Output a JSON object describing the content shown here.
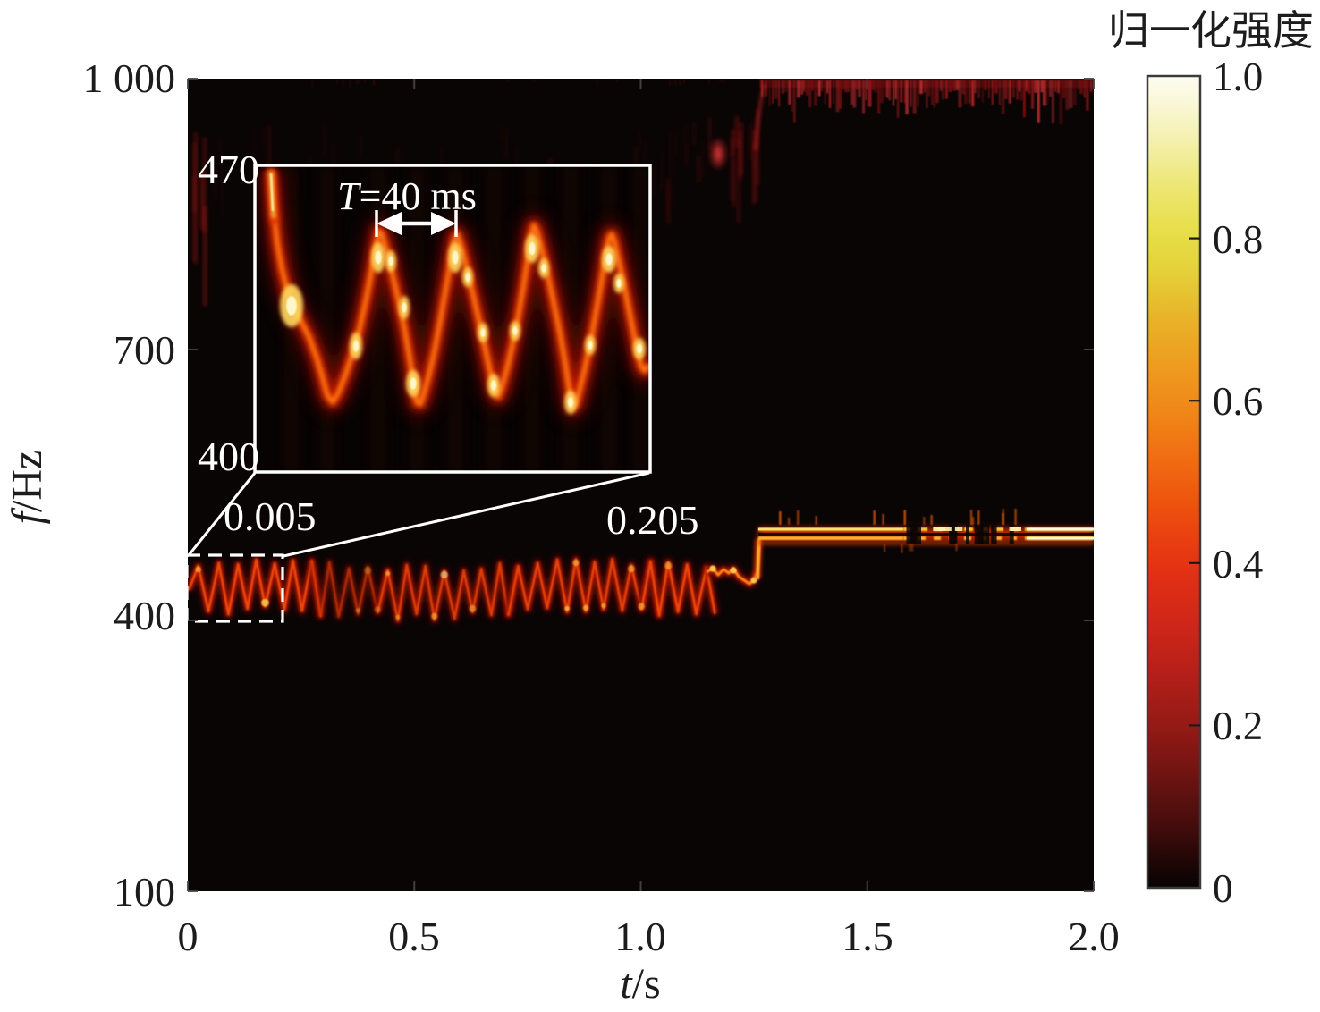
{
  "figure": {
    "colorbar_title": "归一化强度"
  },
  "axes": {
    "x_label_var": "t",
    "x_label_rest": "/s",
    "y_label_var": "f",
    "y_label_rest": "/Hz",
    "x_ticks": [
      {
        "label": "0",
        "value": 0
      },
      {
        "label": "0.5",
        "value": 0.5
      },
      {
        "label": "1.0",
        "value": 1.0
      },
      {
        "label": "1.5",
        "value": 1.5
      },
      {
        "label": "2.0",
        "value": 2.0
      }
    ],
    "y_ticks": [
      {
        "label": "100",
        "value": 100
      },
      {
        "label": "400",
        "value": 400
      },
      {
        "label": "700",
        "value": 700
      },
      {
        "label": "1 000",
        "value": 1000
      }
    ]
  },
  "colorbar": {
    "title": "归一化强度",
    "ticks": [
      {
        "label": "0",
        "value": 0
      },
      {
        "label": "0.2",
        "value": 0.2
      },
      {
        "label": "0.4",
        "value": 0.4
      },
      {
        "label": "0.6",
        "value": 0.6
      },
      {
        "label": "0.8",
        "value": 0.8
      },
      {
        "label": "1.0",
        "value": 1.0
      }
    ]
  },
  "inset": {
    "top_freq_label": "470",
    "bottom_freq_label": "400",
    "t_start_label": "0.005",
    "t_end_label": "0.205",
    "period_var": "T",
    "period_rest": "=40 ms"
  },
  "chart_data": {
    "type": "heatmap",
    "title": "",
    "xlabel": "t/s",
    "ylabel": "f/Hz",
    "colorbar_label": "归一化强度",
    "colormap": "hot",
    "x_range_s": [
      0,
      2.0
    ],
    "y_range_hz": [
      100,
      1000
    ],
    "intensity_range": [
      0,
      1.0
    ],
    "x_tick_values": [
      0,
      0.5,
      1.0,
      1.5,
      2.0
    ],
    "y_tick_values": [
      100,
      400,
      700,
      1000
    ],
    "colorbar_tick_values": [
      0,
      0.2,
      0.4,
      0.6,
      0.8,
      1.0
    ],
    "grid": false,
    "components": [
      {
        "name": "frequency-modulated-tone",
        "t_range_s": [
          0,
          1.17
        ],
        "f_center_hz": 435,
        "f_deviation_hz": 30,
        "modulation_period_ms": 40,
        "intensity": [
          0.3,
          0.9
        ]
      },
      {
        "name": "stepped-transition",
        "t_range_s": [
          1.17,
          1.26
        ],
        "f_hz": [
          440,
          465
        ],
        "intensity": [
          0.6,
          0.9
        ]
      },
      {
        "name": "steady-narrowband-tone",
        "t_range_s": [
          1.26,
          2.0
        ],
        "f_hz": 497,
        "intensity": [
          0.7,
          1.0
        ]
      },
      {
        "name": "broadband-noise-band",
        "t_range_s": [
          1.26,
          2.0
        ],
        "f_hz": [
          940,
          1000
        ],
        "intensity": [
          0.1,
          0.4
        ]
      },
      {
        "name": "faint-upper-harmonics",
        "t_range_s": [
          0,
          1.25
        ],
        "f_hz": [
          820,
          930
        ],
        "intensity": [
          0.05,
          0.2
        ]
      }
    ],
    "inset": {
      "t_range_s": [
        0.005,
        0.205
      ],
      "f_range_hz": [
        400,
        470
      ],
      "annotation": "T=40 ms",
      "annotation_period_ms": 40
    }
  }
}
